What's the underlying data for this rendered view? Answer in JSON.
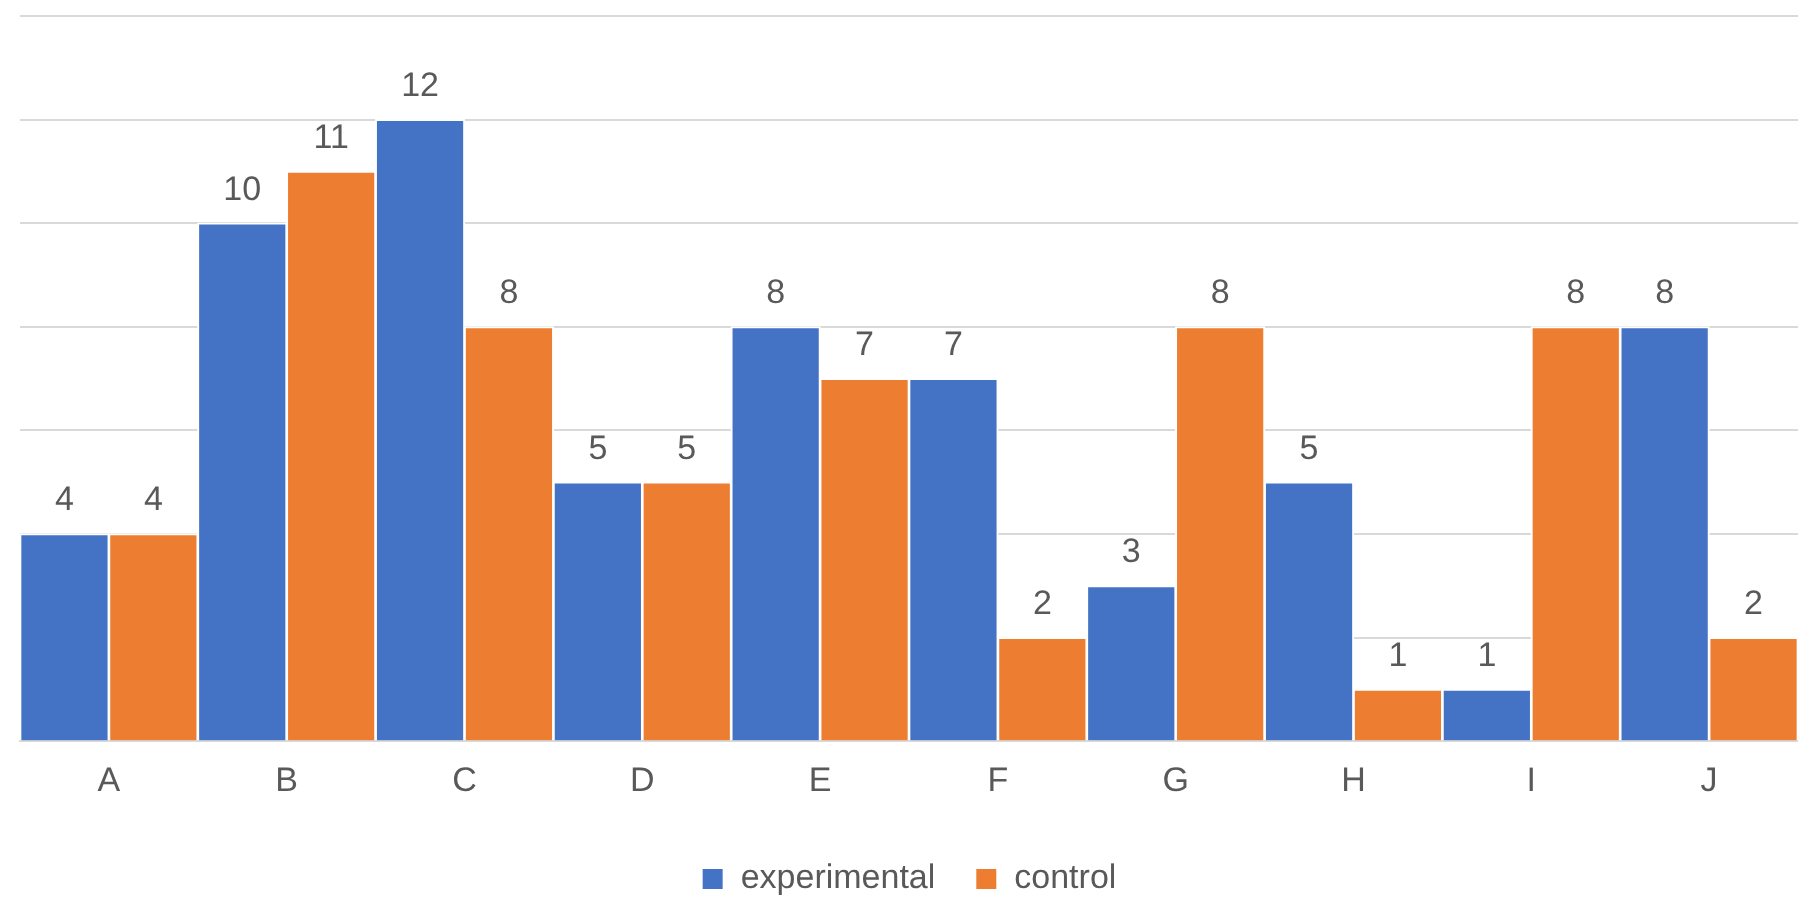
{
  "chart_data": {
    "type": "bar",
    "categories": [
      "A",
      "B",
      "C",
      "D",
      "E",
      "F",
      "G",
      "H",
      "I",
      "J"
    ],
    "series": [
      {
        "name": "experimental",
        "color": "#4472c4",
        "values": [
          4,
          10,
          12,
          5,
          8,
          7,
          3,
          5,
          1,
          8
        ]
      },
      {
        "name": "control",
        "color": "#ed7d31",
        "values": [
          4,
          11,
          8,
          5,
          7,
          2,
          8,
          1,
          8,
          2
        ]
      }
    ],
    "ylim": [
      0,
      14
    ],
    "yticks": [
      {
        "value": 0,
        "label": null
      },
      {
        "value": 2,
        "label": null
      },
      {
        "value": 4,
        "label": null
      },
      {
        "value": 6,
        "label": null
      },
      {
        "value": 8,
        "label": null
      },
      {
        "value": 10,
        "label": null
      },
      {
        "value": 12,
        "label": null
      },
      {
        "value": 14,
        "label": null
      }
    ],
    "tick_labels": "x",
    "grid": "y",
    "legend": "bottom",
    "data_labels": true
  }
}
